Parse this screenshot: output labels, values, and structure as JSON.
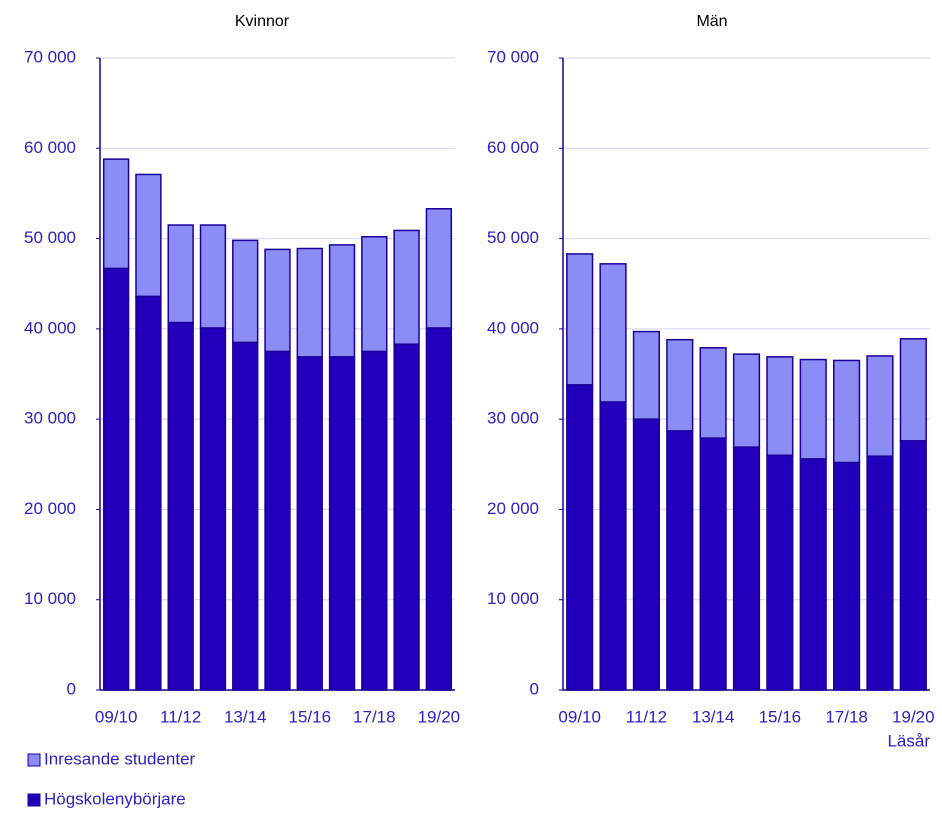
{
  "chart_data": [
    {
      "type": "bar",
      "stacked": true,
      "title": "Kvinnor",
      "categories": [
        "09/10",
        null,
        "11/12",
        null,
        "13/14",
        null,
        "15/16",
        null,
        "17/18",
        null,
        "19/20"
      ],
      "series": [
        {
          "name": "Högskolenybörjare",
          "color": "#2200bb",
          "values": [
            46700,
            43600,
            40700,
            40100,
            38500,
            37500,
            36900,
            36900,
            37500,
            38300,
            40100
          ]
        },
        {
          "name": "Inresande studenter",
          "color": "#8c8cf5",
          "values": [
            12100,
            13500,
            10800,
            11400,
            11300,
            11300,
            12000,
            12400,
            12700,
            12600,
            13200
          ]
        }
      ],
      "ylim": [
        0,
        70000
      ],
      "yticks": [
        0,
        {
          "value": 10000,
          "label": "10 000"
        },
        {
          "value": 20000,
          "label": "20 000"
        },
        {
          "value": 30000,
          "label": "30 000"
        },
        {
          "value": 40000,
          "label": "40 000"
        },
        {
          "value": 50000,
          "label": "50 000"
        },
        {
          "value": 60000,
          "label": "60 000"
        },
        {
          "value": 70000,
          "label": "70 000"
        }
      ],
      "grid": true
    },
    {
      "type": "bar",
      "stacked": true,
      "title": "Män",
      "xlabel": "Läsår",
      "categories": [
        "09/10",
        null,
        "11/12",
        null,
        "13/14",
        null,
        "15/16",
        null,
        "17/18",
        null,
        "19/20"
      ],
      "series": [
        {
          "name": "Högskolenybörjare",
          "color": "#2200bb",
          "values": [
            33800,
            31900,
            30000,
            28700,
            27900,
            26900,
            26000,
            25600,
            25200,
            25900,
            27600
          ]
        },
        {
          "name": "Inresande studenter",
          "color": "#8c8cf5",
          "values": [
            14500,
            15300,
            9700,
            10100,
            10000,
            10300,
            10900,
            11000,
            11300,
            11100,
            11300
          ]
        }
      ],
      "ylim": [
        0,
        70000
      ],
      "yticks": [
        0,
        {
          "value": 10000,
          "label": "10 000"
        },
        {
          "value": 20000,
          "label": "20 000"
        },
        {
          "value": 30000,
          "label": "30 000"
        },
        {
          "value": 40000,
          "label": "40 000"
        },
        {
          "value": 50000,
          "label": "50 000"
        },
        {
          "value": 60000,
          "label": "60 000"
        },
        {
          "value": 70000,
          "label": "70 000"
        }
      ],
      "grid": true
    }
  ]
}
